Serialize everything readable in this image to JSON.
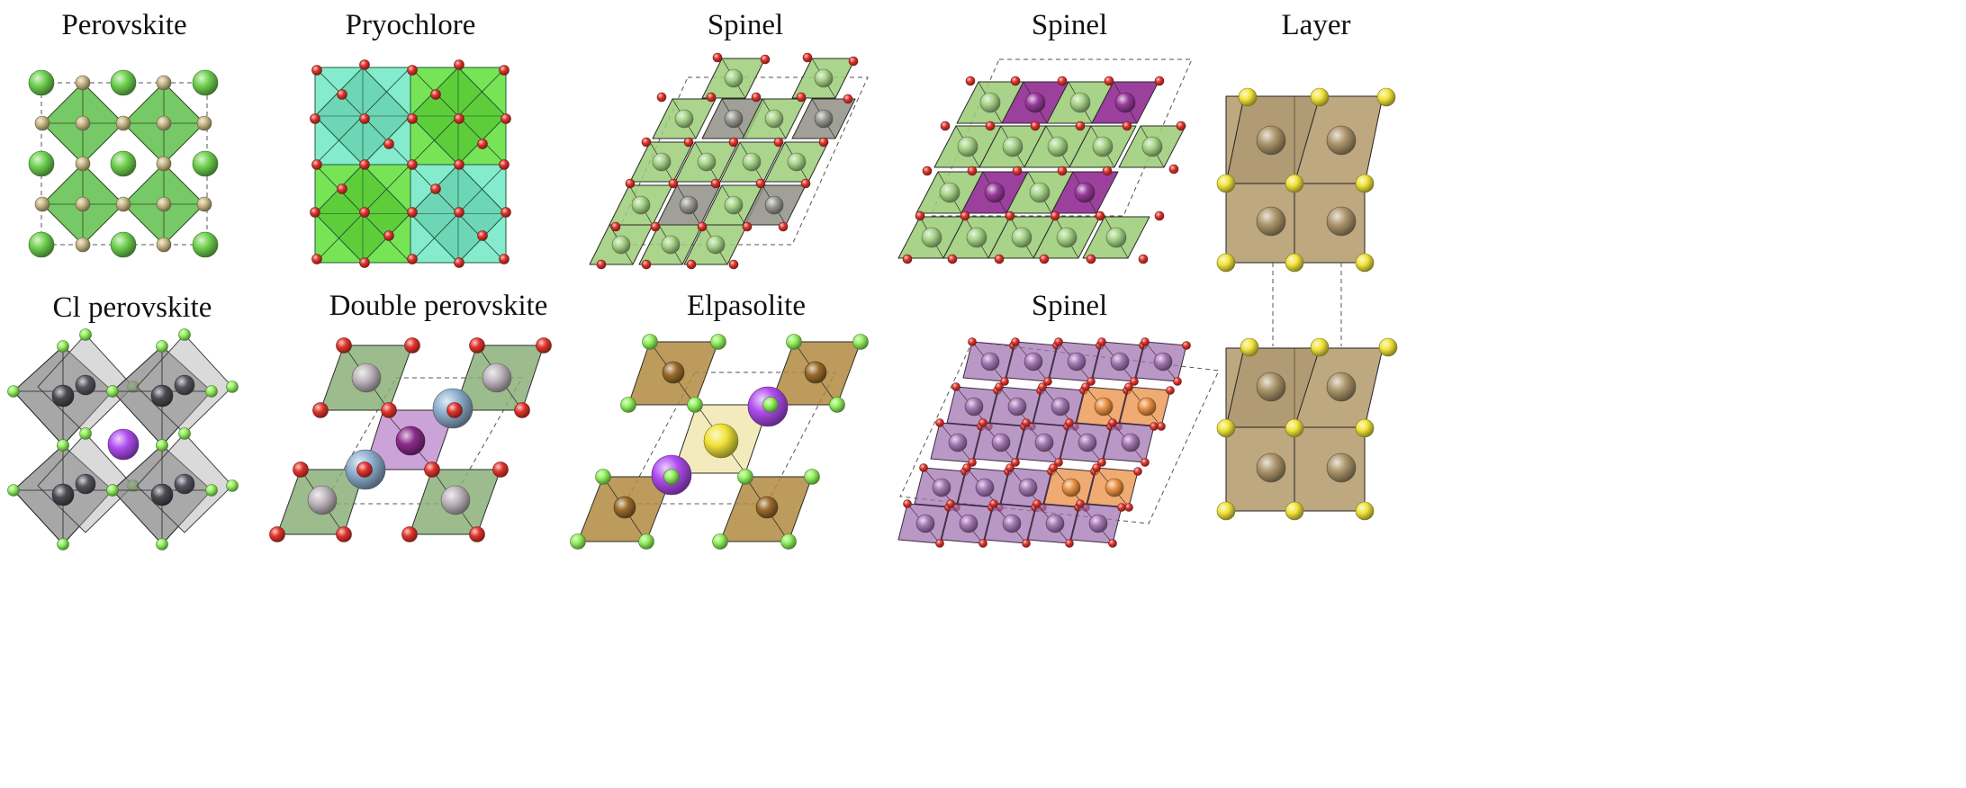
{
  "panels": [
    {
      "title": "Perovskite"
    },
    {
      "title": "Pryochlore"
    },
    {
      "title": "Spinel"
    },
    {
      "title": "Spinel"
    },
    {
      "title": "Layer"
    },
    {
      "title": "Cl perovskite"
    },
    {
      "title": "Double perovskite"
    },
    {
      "title": "Elpasolite"
    },
    {
      "title": "Spinel"
    }
  ],
  "colors": {
    "green_octahedron": "#5fbf4e",
    "green_sphere": "#6fd14f",
    "tan_sphere": "#c8b884",
    "aqua_polyhedron": "#67e6c0",
    "bright_green_polyhedron": "#55dd2c",
    "red_oxygen": "#e2342c",
    "light_green_octahedron": "#9ccd78",
    "gray_octahedron": "#8f8f86",
    "magenta_octahedron": "#8e2590",
    "brown_cube": "#b69e72",
    "yellow_sphere": "#f2e43a",
    "gray_cl_octahedron": "#8a8a8a",
    "purple_sphere": "#b04cf0",
    "lime_cl": "#8ff05a",
    "lavender": "#bf8fcf",
    "blue_sphere": "#8fb0cf",
    "khaki_octahedron": "#b08a40",
    "pale_yellow": "#f2e8b0",
    "violet_polyhedron": "#a070b0",
    "orange_tetrahedron": "#e98b3a"
  }
}
